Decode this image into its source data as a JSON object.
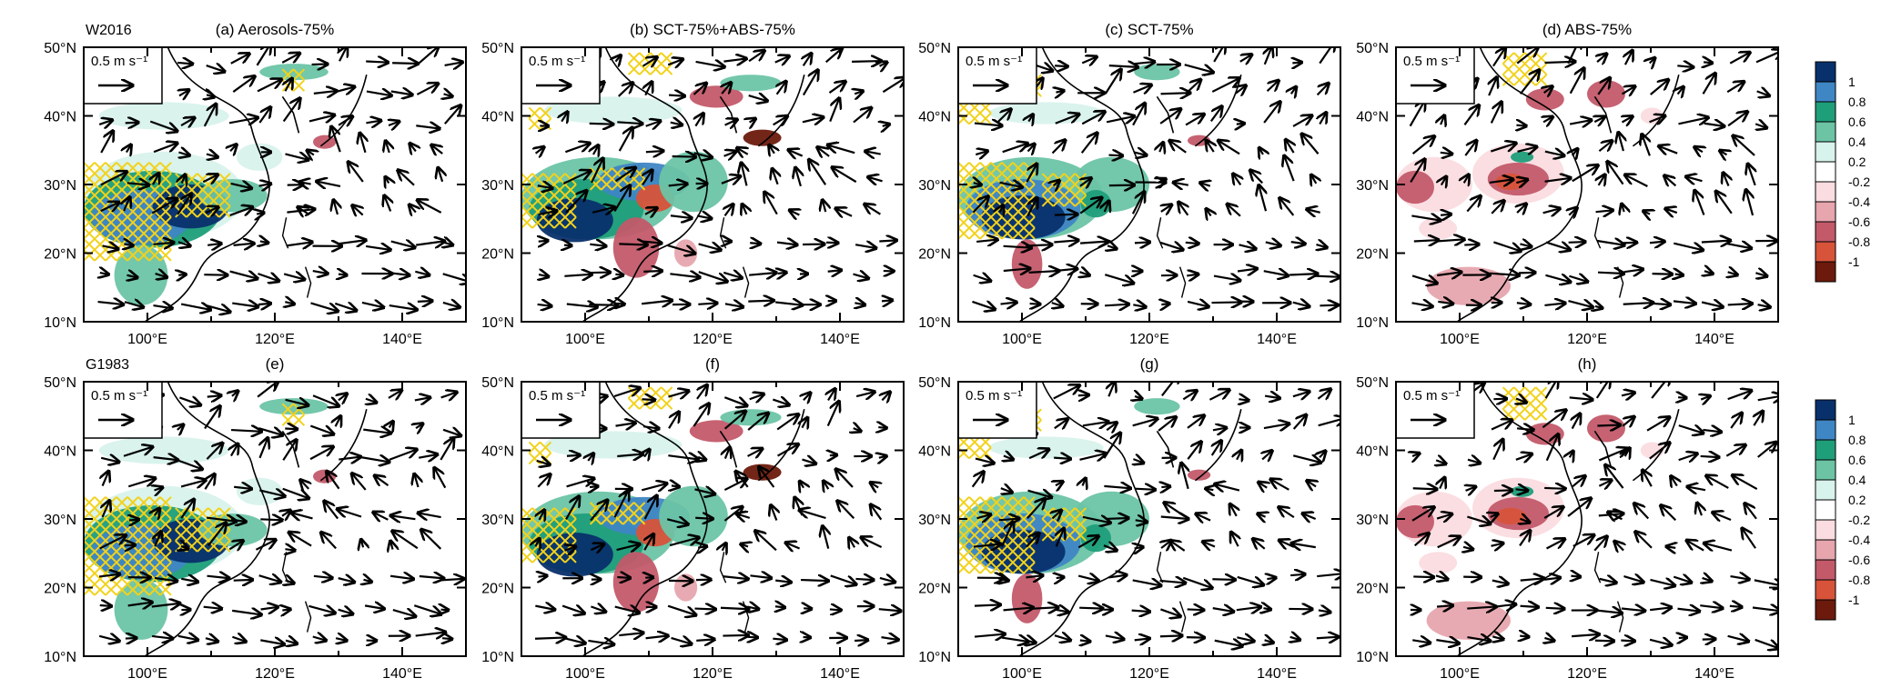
{
  "rows": [
    {
      "label": "W2016",
      "titles": [
        "(a) Aerosols-75%",
        "(b) SCT-75%+ABS-75%",
        "(c) SCT-75%",
        "(d) ABS-75%"
      ]
    },
    {
      "label": "G1983",
      "titles": [
        "(e)",
        "(f)",
        "(g)",
        "(h)"
      ]
    }
  ],
  "ref_vector_label": "0.5 m s⁻¹",
  "colorbar": {
    "labels": [
      "1",
      "0.8",
      "0.6",
      "0.4",
      "0.2",
      "-0.2",
      "-0.4",
      "-0.6",
      "-0.8",
      "-1"
    ],
    "colors": [
      "#08306b",
      "#3f86c4",
      "#1f9e7a",
      "#6cc4a5",
      "#d8f2ec",
      "#ffffff",
      "#fbdce0",
      "#e7a5ae",
      "#c35a6a",
      "#d7533a",
      "#6b1a0b"
    ]
  },
  "hatch_color": "#f2d21b",
  "chart_data": [
    {
      "panel": "(a) Aerosols-75%",
      "type": "map",
      "x_ticks": [
        "100°E",
        "120°E",
        "140°E"
      ],
      "y_ticks": [
        "50°N",
        "40°N",
        "30°N",
        "20°N",
        "10°N"
      ],
      "xlim": [
        90,
        150
      ],
      "ylim": [
        10,
        50
      ],
      "field_levels": [
        -1,
        -0.8,
        -0.6,
        -0.4,
        -0.2,
        0.2,
        0.4,
        0.6,
        0.8,
        1
      ],
      "reference_vector": 0.5
    },
    {
      "panel": "(b) SCT-75%+ABS-75%",
      "type": "map",
      "x_ticks": [
        "100°E",
        "120°E",
        "140°E"
      ],
      "y_ticks": [
        "50°N",
        "40°N",
        "30°N",
        "20°N",
        "10°N"
      ],
      "xlim": [
        90,
        150
      ],
      "ylim": [
        10,
        50
      ],
      "field_levels": [
        -1,
        -0.8,
        -0.6,
        -0.4,
        -0.2,
        0.2,
        0.4,
        0.6,
        0.8,
        1
      ],
      "reference_vector": 0.5
    },
    {
      "panel": "(c) SCT-75%",
      "type": "map",
      "x_ticks": [
        "100°E",
        "120°E",
        "140°E"
      ],
      "y_ticks": [
        "50°N",
        "40°N",
        "30°N",
        "20°N",
        "10°N"
      ],
      "xlim": [
        90,
        150
      ],
      "ylim": [
        10,
        50
      ],
      "field_levels": [
        -1,
        -0.8,
        -0.6,
        -0.4,
        -0.2,
        0.2,
        0.4,
        0.6,
        0.8,
        1
      ],
      "reference_vector": 0.5
    },
    {
      "panel": "(d) ABS-75%",
      "type": "map",
      "x_ticks": [
        "100°E",
        "120°E",
        "140°E"
      ],
      "y_ticks": [
        "50°N",
        "40°N",
        "30°N",
        "20°N",
        "10°N"
      ],
      "xlim": [
        90,
        150
      ],
      "ylim": [
        10,
        50
      ],
      "field_levels": [
        -1,
        -0.8,
        -0.6,
        -0.4,
        -0.2,
        0.2,
        0.4,
        0.6,
        0.8,
        1
      ],
      "reference_vector": 0.5
    },
    {
      "panel": "(e)",
      "type": "map",
      "x_ticks": [
        "100°E",
        "120°E",
        "140°E"
      ],
      "y_ticks": [
        "50°N",
        "40°N",
        "30°N",
        "20°N",
        "10°N"
      ],
      "xlim": [
        90,
        150
      ],
      "ylim": [
        10,
        50
      ],
      "field_levels": [
        -1,
        -0.8,
        -0.6,
        -0.4,
        -0.2,
        0.2,
        0.4,
        0.6,
        0.8,
        1
      ],
      "reference_vector": 0.5
    },
    {
      "panel": "(f)",
      "type": "map",
      "x_ticks": [
        "100°E",
        "120°E",
        "140°E"
      ],
      "y_ticks": [
        "50°N",
        "40°N",
        "30°N",
        "20°N",
        "10°N"
      ],
      "xlim": [
        90,
        150
      ],
      "ylim": [
        10,
        50
      ],
      "field_levels": [
        -1,
        -0.8,
        -0.6,
        -0.4,
        -0.2,
        0.2,
        0.4,
        0.6,
        0.8,
        1
      ],
      "reference_vector": 0.5
    },
    {
      "panel": "(g)",
      "type": "map",
      "x_ticks": [
        "100°E",
        "120°E",
        "140°E"
      ],
      "y_ticks": [
        "50°N",
        "40°N",
        "30°N",
        "20°N",
        "10°N"
      ],
      "xlim": [
        90,
        150
      ],
      "ylim": [
        10,
        50
      ],
      "field_levels": [
        -1,
        -0.8,
        -0.6,
        -0.4,
        -0.2,
        0.2,
        0.4,
        0.6,
        0.8,
        1
      ],
      "reference_vector": 0.5
    },
    {
      "panel": "(h)",
      "type": "map",
      "x_ticks": [
        "100°E",
        "120°E",
        "140°E"
      ],
      "y_ticks": [
        "50°N",
        "40°N",
        "30°N",
        "20°N",
        "10°N"
      ],
      "xlim": [
        90,
        150
      ],
      "ylim": [
        10,
        50
      ],
      "field_levels": [
        -1,
        -0.8,
        -0.6,
        -0.4,
        -0.2,
        0.2,
        0.4,
        0.6,
        0.8,
        1
      ],
      "reference_vector": 0.5
    }
  ]
}
